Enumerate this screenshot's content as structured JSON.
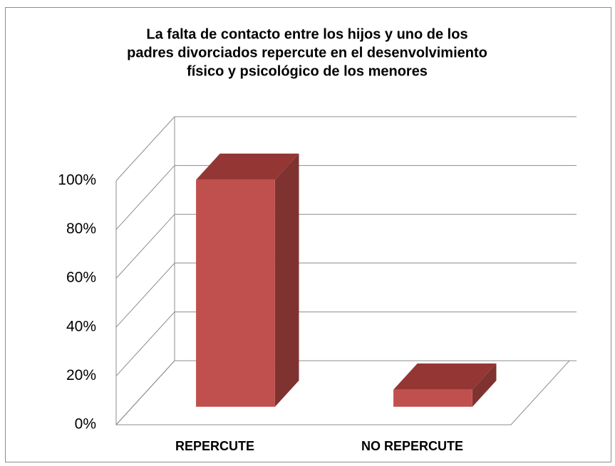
{
  "chart_data": {
    "type": "bar3d",
    "title": [
      "La falta de contacto entre los hijos y uno de los",
      "padres divorciados repercute en el desenvolvimiento",
      "físico y psicológico de los menores"
    ],
    "categories": [
      "REPERCUTE",
      "NO REPERCUTE"
    ],
    "values": [
      93,
      7
    ],
    "color": "#c0504d",
    "ylim": [
      0,
      100
    ],
    "yticks": [
      {
        "value": 0,
        "label": "0%"
      },
      {
        "value": 20,
        "label": "20%"
      },
      {
        "value": 40,
        "label": "40%"
      },
      {
        "value": 60,
        "label": "60%"
      },
      {
        "value": 80,
        "label": "80%"
      },
      {
        "value": 100,
        "label": "100%"
      }
    ],
    "grid": true
  }
}
